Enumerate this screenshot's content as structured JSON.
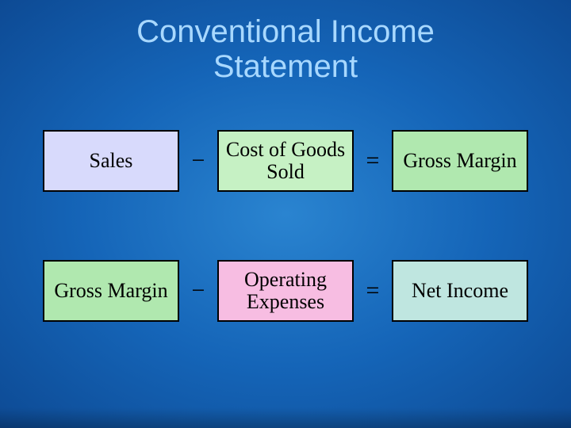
{
  "title": {
    "line1": "Conventional Income",
    "line2": "Statement",
    "color": "#a8d8ff",
    "fontsize": 40
  },
  "operators": {
    "minus": "−",
    "equals": "=",
    "color": "#000000",
    "fontsize": 30
  },
  "boxes": {
    "border_color": "#000000",
    "border_width": 2,
    "fontsize": 26,
    "text_color": "#000000",
    "width": 172,
    "height": 78
  },
  "rows": [
    {
      "a": {
        "label": "Sales",
        "fill": "#d8dafc"
      },
      "b": {
        "label": "Cost of Goods Sold",
        "fill": "#c6f1c4"
      },
      "c": {
        "label": "Gross Margin",
        "fill": "#b0e8af"
      }
    },
    {
      "a": {
        "label": "Gross Margin",
        "fill": "#b0e8af"
      },
      "b": {
        "label": "Operating Expenses",
        "fill": "#f7bde2"
      },
      "c": {
        "label": "Net Income",
        "fill": "#bfe6e0"
      }
    }
  ],
  "background": {
    "gradient_inner": "#2a84d0",
    "gradient_mid": "#1565b8",
    "gradient_outer": "#0d4a94"
  }
}
